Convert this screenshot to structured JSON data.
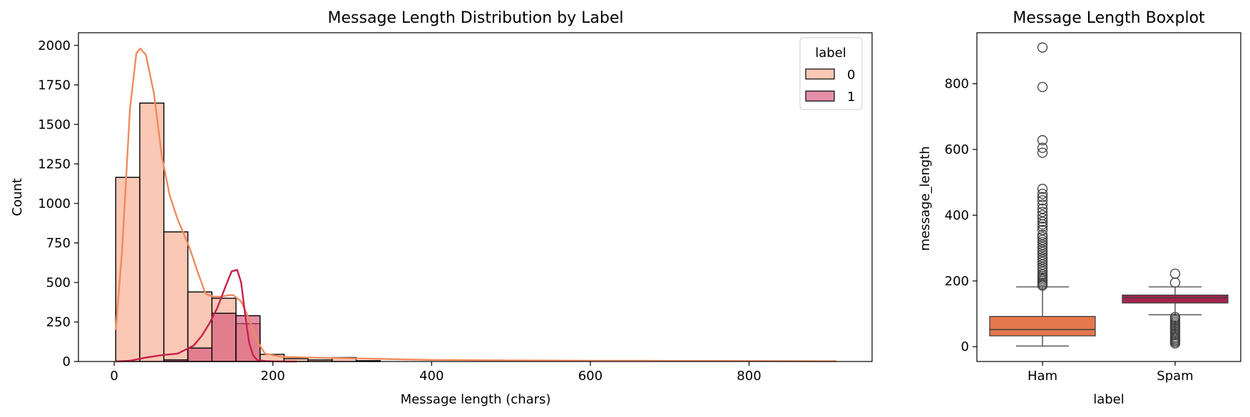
{
  "colors": {
    "ham": "#f08a5d",
    "ham_bar_fill": "#f6a383",
    "spam": "#c8204b",
    "spam_bar_fill": "#d6547a",
    "ham_box": "#e5784d",
    "spam_box": "#a8244f",
    "axis": "#000000"
  },
  "chart_data": [
    {
      "type": "bar",
      "subtype": "histogram_with_kde",
      "title": "Message Length Distribution by Label",
      "xlabel": "Message length (chars)",
      "ylabel": "Count",
      "xlim": [
        -45,
        955
      ],
      "ylim": [
        0,
        2080
      ],
      "xticks": [
        0,
        200,
        400,
        600,
        800
      ],
      "yticks": [
        0,
        250,
        500,
        750,
        1000,
        1250,
        1500,
        1750,
        2000
      ],
      "legend": {
        "title": "label",
        "position": "top-right",
        "entries": [
          "0",
          "1"
        ]
      },
      "bin_edges": [
        2,
        32.3,
        62.6,
        92.9,
        123.2,
        153.5,
        183.8,
        214.1,
        244.4,
        274.7,
        305.0,
        335.3
      ],
      "series": [
        {
          "name": "0",
          "counts": [
            1165,
            1635,
            820,
            440,
            400,
            240,
            45,
            18,
            10,
            25,
            5
          ],
          "kde": {
            "x": [
              2,
              10,
              20,
              28,
              33,
              40,
              50,
              60,
              70,
              80,
              95,
              105,
              115,
              125,
              135,
              145,
              150,
              160,
              170,
              180,
              190,
              210,
              240,
              300,
              400,
              500,
              600,
              700,
              800,
              910
            ],
            "y": [
              200,
              700,
              1600,
              1950,
              1980,
              1940,
              1700,
              1300,
              1050,
              900,
              720,
              570,
              430,
              410,
              410,
              420,
              420,
              380,
              270,
              130,
              50,
              30,
              25,
              20,
              10,
              7,
              5,
              4,
              3,
              2
            ]
          }
        },
        {
          "name": "1",
          "counts": [
            0,
            0,
            10,
            85,
            305,
            290,
            0,
            0,
            0,
            0,
            0
          ],
          "kde": {
            "x": [
              2,
              20,
              40,
              60,
              80,
              100,
              110,
              120,
              130,
              140,
              148,
              155,
              160,
              165,
              170,
              175,
              180,
              190,
              200,
              230
            ],
            "y": [
              0,
              5,
              25,
              40,
              50,
              100,
              160,
              240,
              340,
              470,
              570,
              580,
              500,
              300,
              120,
              40,
              10,
              3,
              1,
              0
            ]
          }
        }
      ]
    },
    {
      "type": "box",
      "title": "Message Length Boxplot",
      "xlabel": "label",
      "ylabel": "message_length",
      "ylim": [
        -45,
        955
      ],
      "yticks": [
        0,
        200,
        400,
        600,
        800
      ],
      "categories": [
        "Ham",
        "Spam"
      ],
      "boxes": [
        {
          "name": "Ham",
          "whisker_low": 2,
          "q1": 33,
          "median": 52,
          "q3": 92,
          "whisker_high": 182,
          "outliers": [
            186,
            190,
            195,
            200,
            205,
            210,
            215,
            220,
            228,
            235,
            242,
            250,
            258,
            265,
            272,
            280,
            288,
            295,
            303,
            310,
            318,
            325,
            333,
            340,
            355,
            365,
            372,
            380,
            390,
            400,
            410,
            420,
            432,
            445,
            455,
            465,
            480,
            590,
            605,
            628,
            790,
            910
          ]
        },
        {
          "name": "Spam",
          "whisker_low": 97,
          "q1": 133,
          "median": 149,
          "q3": 157,
          "whisker_high": 182,
          "outliers": [
            10,
            14,
            18,
            22,
            26,
            30,
            35,
            40,
            45,
            50,
            55,
            60,
            65,
            70,
            75,
            80,
            85,
            90,
            195,
            222
          ]
        }
      ]
    }
  ]
}
